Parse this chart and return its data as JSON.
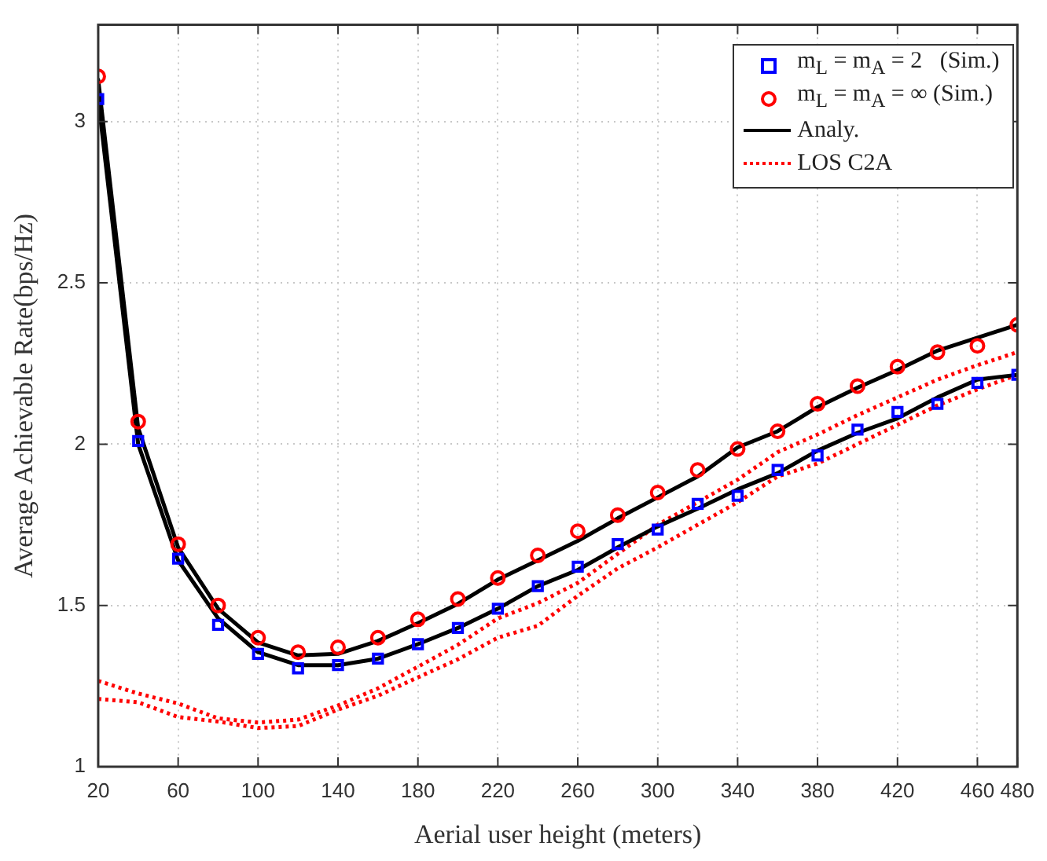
{
  "chart_data": {
    "type": "line",
    "xlabel": "Aerial user height (meters)",
    "ylabel": "Average Achievable Rate(bps/Hz)",
    "x": [
      20,
      40,
      60,
      80,
      100,
      120,
      140,
      160,
      180,
      200,
      220,
      240,
      260,
      280,
      300,
      320,
      340,
      360,
      380,
      400,
      420,
      440,
      460,
      480
    ],
    "xlim": [
      20,
      480
    ],
    "xticks": [
      20,
      60,
      100,
      140,
      180,
      220,
      260,
      300,
      340,
      380,
      420,
      460,
      480
    ],
    "ylim": [
      1,
      3.3
    ],
    "yticks": [
      1,
      1.5,
      2,
      2.5,
      3
    ],
    "grid": true,
    "legend": "top right",
    "series": [
      {
        "name": "m$_{L}$ = m$_{A}$ = 2   (Sim.)",
        "type": "scatter",
        "marker": "square",
        "color": "#0000ff",
        "values": [
          3.07,
          2.01,
          1.645,
          1.44,
          1.35,
          1.305,
          1.315,
          1.335,
          1.38,
          1.43,
          1.49,
          1.56,
          1.62,
          1.69,
          1.735,
          1.815,
          1.84,
          1.92,
          1.965,
          2.045,
          2.1,
          2.125,
          2.19,
          2.215
        ]
      },
      {
        "name": "m$_{L}$ = m$_{A}$ = ∞ (Sim.)",
        "type": "scatter",
        "marker": "circle",
        "color": "#ff0000",
        "values": [
          3.14,
          2.07,
          1.69,
          1.5,
          1.4,
          1.355,
          1.37,
          1.4,
          1.457,
          1.52,
          1.585,
          1.655,
          1.73,
          1.78,
          1.85,
          1.92,
          1.985,
          2.04,
          2.125,
          2.18,
          2.24,
          2.285,
          2.305,
          2.37
        ]
      },
      {
        "name": "Analy.",
        "type": "line",
        "line_style": "solid",
        "color": "#000000",
        "values": [
          3.13,
          2.05,
          1.68,
          1.49,
          1.385,
          1.345,
          1.35,
          1.39,
          1.445,
          1.505,
          1.58,
          1.64,
          1.7,
          1.77,
          1.835,
          1.9,
          1.99,
          2.04,
          2.115,
          2.175,
          2.23,
          2.29,
          2.33,
          2.37
        ]
      },
      {
        "type": "line",
        "line_style": "solid",
        "color": "#000000",
        "values": [
          3.07,
          2.0,
          1.64,
          1.46,
          1.355,
          1.315,
          1.315,
          1.335,
          1.38,
          1.43,
          1.49,
          1.56,
          1.61,
          1.68,
          1.745,
          1.8,
          1.86,
          1.91,
          1.98,
          2.035,
          2.08,
          2.145,
          2.2,
          2.215
        ]
      },
      {
        "name": "LOS C2A",
        "type": "line",
        "line_style": "dotted",
        "color": "#ff0000",
        "values": [
          1.266,
          1.227,
          1.196,
          1.15,
          1.137,
          1.146,
          1.19,
          1.243,
          1.31,
          1.378,
          1.46,
          1.507,
          1.57,
          1.66,
          1.75,
          1.82,
          1.89,
          1.975,
          2.03,
          2.09,
          2.145,
          2.2,
          2.245,
          2.285
        ]
      },
      {
        "type": "line",
        "line_style": "dotted",
        "color": "#ff0000",
        "values": [
          1.21,
          1.2,
          1.154,
          1.14,
          1.12,
          1.126,
          1.177,
          1.22,
          1.277,
          1.333,
          1.4,
          1.437,
          1.53,
          1.615,
          1.68,
          1.75,
          1.82,
          1.9,
          1.94,
          2.0,
          2.06,
          2.12,
          2.17,
          2.215
        ]
      }
    ]
  }
}
